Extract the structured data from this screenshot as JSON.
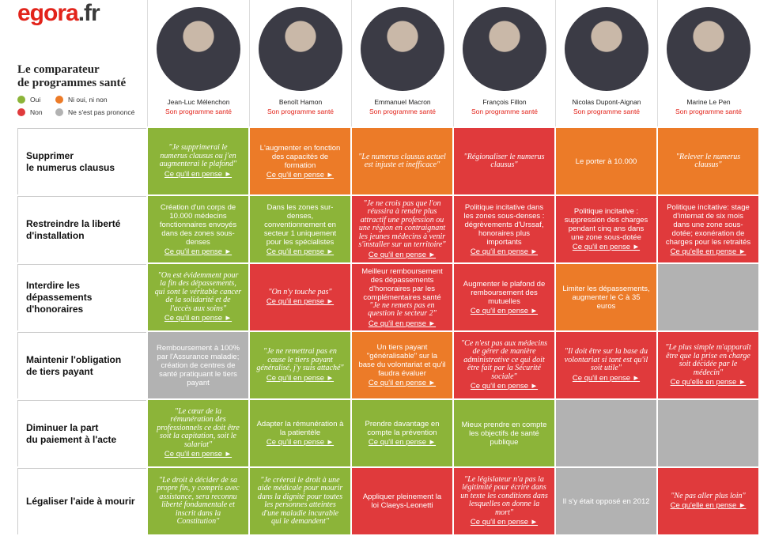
{
  "header": {
    "logo": {
      "main": "egora",
      "suffix": ".fr"
    },
    "title": "Le comparateur\nde programmes santé",
    "legend": [
      {
        "label": "Oui",
        "color": "#8cb439"
      },
      {
        "label": "Ni oui, ni non",
        "color": "#ec7b28"
      },
      {
        "label": "Non",
        "color": "#e03a3c"
      },
      {
        "label": "Ne s'est pas prononcé",
        "color": "#b2b2b2"
      }
    ]
  },
  "candidates": [
    {
      "name": "Jean-Luc Mélenchon",
      "link": "Son programme santé"
    },
    {
      "name": "Benoît Hamon",
      "link": "Son programme santé"
    },
    {
      "name": "Emmanuel Macron",
      "link": "Son programme santé"
    },
    {
      "name": "François Fillon",
      "link": "Son programme santé"
    },
    {
      "name": "Nicolas Dupont-Aignan",
      "link": "Son programme santé"
    },
    {
      "name": "Marine Le Pen",
      "link": "Son programme santé"
    }
  ],
  "rows": [
    {
      "label": "Supprimer\nle numerus clausus",
      "cells": [
        {
          "color": "#8cb439",
          "texts": [
            "\"Je supprimerai le numerus clausus ou j'en augmenterai le plafond\""
          ],
          "link": "Ce qu'il en pense ►"
        },
        {
          "color": "#ec7b28",
          "texts": [
            "L'augmenter en fonction des capacités de formation"
          ],
          "link": "Ce qu'il en pense ►"
        },
        {
          "color": "#ec7b28",
          "texts": [
            "\"Le numerus clausus actuel est injuste et inefficace\""
          ]
        },
        {
          "color": "#e03a3c",
          "texts": [
            "\"Régionaliser le numerus clausus\""
          ]
        },
        {
          "color": "#ec7b28",
          "texts": [
            "Le porter à 10.000"
          ]
        },
        {
          "color": "#ec7b28",
          "texts": [
            "\"Relever le numerus clausus\""
          ]
        }
      ]
    },
    {
      "label": "Restreindre la liberté\nd'installation",
      "cells": [
        {
          "color": "#8cb439",
          "texts": [
            "Création d'un corps de 10.000 médecins fonctionnaires envoyés dans des zones sous-denses"
          ],
          "link": "Ce qu'il en pense ►"
        },
        {
          "color": "#8cb439",
          "texts": [
            "Dans les zones sur-denses, conventionnement en secteur 1 uniquement pour les spécialistes"
          ],
          "link": "Ce qu'il en pense ►"
        },
        {
          "color": "#e03a3c",
          "texts": [
            "\"Je ne crois pas que l'on réussira à rendre plus attractif une profession ou une région en contraignant les jeunes médecins à venir s'installer sur un territoire\""
          ],
          "link": "Ce qu'il en pense ►"
        },
        {
          "color": "#e03a3c",
          "texts": [
            "Politique incitative dans les zones sous-denses : dégrèvements d'Urssaf, honoraires plus importants"
          ],
          "link": "Ce qu'il en pense ►"
        },
        {
          "color": "#e03a3c",
          "texts": [
            "Politique incitative : suppression des charges pendant cinq ans dans une zone sous-dotée"
          ],
          "link": "Ce qu'il en pense ►"
        },
        {
          "color": "#e03a3c",
          "texts": [
            "Politique incitative: stage d'internat de six mois dans une zone sous-dotée; exonération de charges pour les retraités"
          ],
          "link": "Ce qu'elle en pense ►"
        }
      ]
    },
    {
      "label": "Interdire les\ndépassements\nd'honoraires",
      "cells": [
        {
          "color": "#8cb439",
          "texts": [
            "\"On est évidemment pour la fin des dépassements, qui sont le véritable cancer de la solidarité et de l'accès aux soins\""
          ],
          "link": "Ce qu'il en pense ►"
        },
        {
          "color": "#e03a3c",
          "texts": [
            "\"On n'y touche pas\""
          ],
          "link": "Ce qu'il en pense ►"
        },
        {
          "color": "#e03a3c",
          "texts": [
            "Meilleur remboursement des dépassements d'honoraires par les complémentaires santé",
            "\"Je ne remets pas en question le secteur 2\""
          ],
          "link": "Ce qu'il en pense ►"
        },
        {
          "color": "#e03a3c",
          "texts": [
            "Augmenter le plafond de remboursement des mutuelles"
          ],
          "link": "Ce qu'il en pense ►"
        },
        {
          "color": "#ec7b28",
          "texts": [
            "Limiter les dépassements, augmenter le C à 35 euros"
          ]
        },
        {
          "color": "#b2b2b2",
          "texts": []
        }
      ]
    },
    {
      "label": "Maintenir l'obligation\nde tiers payant",
      "cells": [
        {
          "color": "#b2b2b2",
          "texts": [
            "Remboursement à 100% par l'Assurance maladie; création de centres de santé pratiquant le tiers payant"
          ]
        },
        {
          "color": "#8cb439",
          "texts": [
            "\"Je ne remettrai pas en cause le tiers payant généralisé, j'y suis attaché\""
          ],
          "link": "Ce qu'il en pense ►"
        },
        {
          "color": "#ec7b28",
          "texts": [
            "Un tiers payant \"généralisable\" sur la base du volontariat et qu'il faudra évaluer"
          ],
          "link": "Ce qu'il en pense ►"
        },
        {
          "color": "#e03a3c",
          "texts": [
            "\"Ce n'est pas aux médecins de gérer de manière administrative ce qui doit être fait par la Sécurité sociale\""
          ],
          "link": "Ce qu'il en pense ►"
        },
        {
          "color": "#e03a3c",
          "texts": [
            "\"Il doit être sur la base du volontariat si tant est qu'il soit utile\""
          ],
          "link": "Ce qu'il en pense ►"
        },
        {
          "color": "#e03a3c",
          "texts": [
            "\"Le plus simple m'apparaît être que la prise en charge soit décidée par le médecin\""
          ],
          "link": "Ce qu'elle en pense ►"
        }
      ]
    },
    {
      "label": "Diminuer la part\ndu paiement à l'acte",
      "cells": [
        {
          "color": "#8cb439",
          "texts": [
            "\"Le cœur de la rémunération des professionnels ce doit être soit la capitation, soit le salariat\""
          ],
          "link": "Ce qu'il en pense ►"
        },
        {
          "color": "#8cb439",
          "texts": [
            "Adapter la rémunération à la patientèle"
          ],
          "link": "Ce qu'il en pense ►"
        },
        {
          "color": "#8cb439",
          "texts": [
            "Prendre davantage en compte la prévention"
          ],
          "link": "Ce qu'il en pense ►"
        },
        {
          "color": "#8cb439",
          "texts": [
            "Mieux prendre en compte les objectifs de santé publique"
          ]
        },
        {
          "color": "#b2b2b2",
          "texts": []
        },
        {
          "color": "#b2b2b2",
          "texts": []
        }
      ]
    },
    {
      "label": "Légaliser l'aide à mourir",
      "cells": [
        {
          "color": "#8cb439",
          "texts": [
            "\"Le droit à décider de sa propre fin, y compris avec assistance, sera reconnu liberté fondamentale et inscrit dans la Constitution\""
          ]
        },
        {
          "color": "#8cb439",
          "texts": [
            "\"Je créerai le droit à une aide médicale pour mourir dans la dignité pour toutes les personnes atteintes d'une maladie incurable qui le demandent\""
          ]
        },
        {
          "color": "#e03a3c",
          "texts": [
            "Appliquer pleinement la loi Claeys-Leonetti"
          ]
        },
        {
          "color": "#e03a3c",
          "texts": [
            "\"Le législateur n'a pas la légitimité pour écrire dans un texte les conditions dans lesquelles on donne la mort\""
          ],
          "link": "Ce qu'il en pense ►"
        },
        {
          "color": "#b2b2b2",
          "texts": [
            "Il s'y était opposé en 2012"
          ]
        },
        {
          "color": "#e03a3c",
          "texts": [
            "\"Ne pas aller plus loin\""
          ],
          "link": "Ce qu'elle en pense ►"
        }
      ]
    }
  ]
}
